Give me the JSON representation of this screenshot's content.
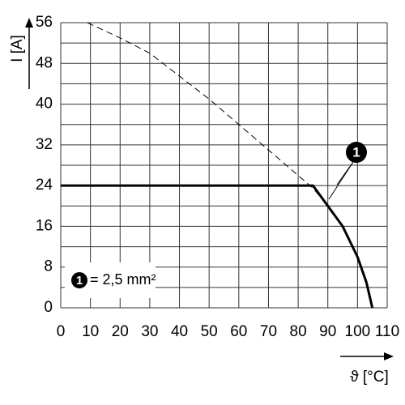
{
  "chart_data": {
    "type": "line",
    "xlabel": "ϑ [°C]",
    "ylabel": "I [A]",
    "xlim": [
      0,
      110
    ],
    "xticks": [
      0,
      10,
      20,
      30,
      40,
      50,
      60,
      70,
      80,
      90,
      100,
      110
    ],
    "ylim": [
      0,
      56
    ],
    "yticks": [
      0,
      8,
      16,
      24,
      32,
      40,
      48,
      56
    ],
    "yminorticks": [
      4,
      12,
      20,
      28,
      36,
      44,
      52
    ],
    "grid": true,
    "series": [
      {
        "color": "#000000",
        "dashed": true,
        "x": [
          9,
          20,
          30,
          40,
          50,
          60,
          70,
          80,
          85,
          90
        ],
        "values": [
          56,
          53,
          50,
          45.5,
          41,
          36,
          31,
          26,
          23.5,
          20
        ]
      },
      {
        "color": "#000000",
        "dashed": false,
        "x": [
          0,
          85,
          90,
          95,
          100,
          103,
          105
        ],
        "values": [
          24,
          24,
          20,
          16,
          10,
          5,
          0
        ]
      }
    ],
    "annotation": {
      "marker": "1",
      "text": "= 2,5 mm²"
    }
  }
}
